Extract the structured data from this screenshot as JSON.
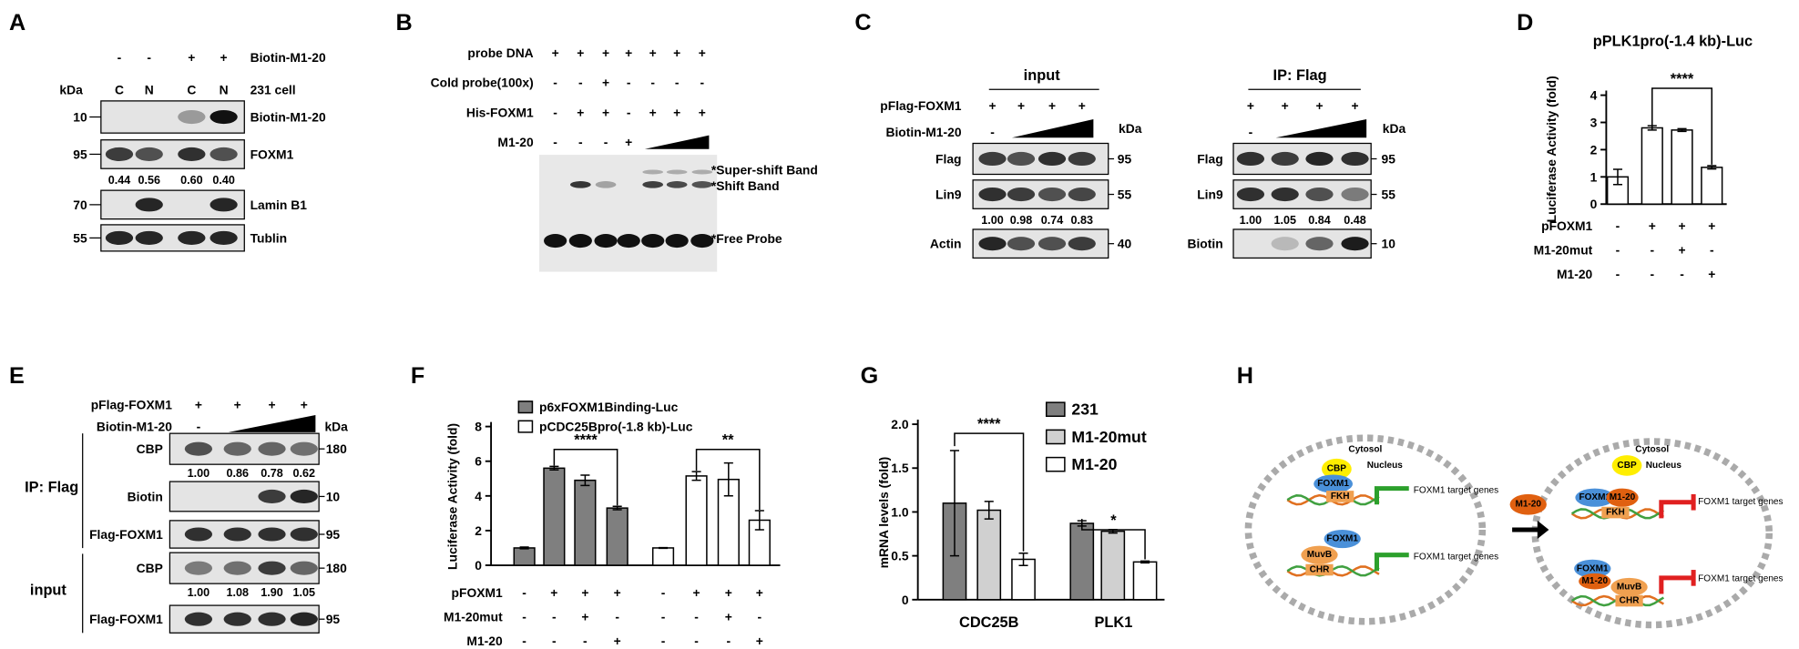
{
  "panels": {
    "A": {
      "letter": "A",
      "lane_signs": [
        "-",
        "-",
        "+",
        "+"
      ],
      "treatment": "Biotin-M1-20",
      "kda": "kDa",
      "fractions": [
        "C",
        "N",
        "C",
        "N"
      ],
      "cell": "231 cell",
      "rows": [
        {
          "marker": "10",
          "label": "Biotin-M1-20"
        },
        {
          "marker": "95",
          "label": "FOXM1",
          "quant": [
            "0.44",
            "0.56",
            "0.60",
            "0.40"
          ]
        },
        {
          "marker": "70",
          "label": "Lamin B1"
        },
        {
          "marker": "55",
          "label": "Tublin"
        }
      ]
    },
    "B": {
      "letter": "B",
      "conditions": [
        {
          "label": "probe DNA",
          "signs": [
            "+",
            "+",
            "+",
            "+",
            "+",
            "+",
            "+"
          ]
        },
        {
          "label": "Cold probe(100x)",
          "signs": [
            "-",
            "-",
            "+",
            "-",
            "-",
            "-",
            "-"
          ]
        },
        {
          "label": "His-FOXM1",
          "signs": [
            "-",
            "+",
            "+",
            "-",
            "+",
            "+",
            "+"
          ]
        },
        {
          "label": "M1-20",
          "signs": [
            "-",
            "-",
            "-",
            "+"
          ]
        }
      ],
      "band_labels": [
        "*Super-shift Band",
        "*Shift Band",
        "*Free Probe"
      ]
    },
    "C": {
      "letter": "C",
      "plasmid": "pFlag-FOXM1",
      "treatment": "Biotin-M1-20",
      "blots": [
        {
          "title": "input",
          "kda": "kDa",
          "plasmid_signs": [
            "+",
            "+",
            "+",
            "+"
          ],
          "treatment_signs": [
            "-"
          ],
          "rows": [
            {
              "label": "Flag",
              "marker": "95"
            },
            {
              "label": "Lin9",
              "marker": "55",
              "quant": [
                "1.00",
                "0.98",
                "0.74",
                "0.83"
              ]
            },
            {
              "label": "Actin",
              "marker": "40"
            }
          ]
        },
        {
          "title": "IP: Flag",
          "kda": "kDa",
          "plasmid_signs": [
            "+",
            "+",
            "+",
            "+"
          ],
          "treatment_signs": [
            "-"
          ],
          "rows": [
            {
              "label": "Flag",
              "marker": "95"
            },
            {
              "label": "Lin9",
              "marker": "55",
              "quant": [
                "1.00",
                "1.05",
                "0.84",
                "0.48"
              ]
            },
            {
              "label": "Biotin",
              "marker": "10"
            }
          ]
        }
      ]
    },
    "E": {
      "letter": "E",
      "plasmid": "pFlag-FOXM1",
      "plasmid_signs": [
        "+",
        "+",
        "+",
        "+"
      ],
      "treatment": "Biotin-M1-20",
      "treatment_signs": [
        "-"
      ],
      "kda": "kDa",
      "groups": [
        {
          "label": "IP: Flag",
          "rows": [
            {
              "label": "CBP",
              "marker": "180",
              "quant": [
                "1.00",
                "0.86",
                "0.78",
                "0.62"
              ]
            },
            {
              "label": "Biotin",
              "marker": "10"
            },
            {
              "label": "Flag-FOXM1",
              "marker": "95"
            }
          ]
        },
        {
          "label": "input",
          "rows": [
            {
              "label": "CBP",
              "marker": "180",
              "quant": [
                "1.00",
                "1.08",
                "1.90",
                "1.05"
              ]
            },
            {
              "label": "Flag-FOXM1",
              "marker": "95"
            }
          ]
        }
      ]
    },
    "H": {
      "letter": "H",
      "left": [
        "Cytosol",
        "Nucleus",
        "CBP",
        "FOXM1",
        "FKH",
        "FOXM1 target genes",
        "FOXM1",
        "MuvB",
        "CHR",
        "FOXM1 target genes"
      ],
      "arrow": [
        "M1-20"
      ],
      "right": [
        "Cytosol",
        "Nucleus",
        "CBP",
        "FOXM1",
        "M1-20",
        "FKH",
        "FOXM1 target genes",
        "FOXM1",
        "M1-20",
        "MuvB",
        "CHR",
        "FOXM1 target genes"
      ]
    }
  },
  "chart_data": [
    {
      "panel": "D",
      "type": "bar",
      "title": "pPLK1pro(-1.4 kb)-Luc",
      "y_label": "Luciferase Activity (fold)",
      "values": [
        1.0,
        2.8,
        2.72,
        1.35
      ],
      "errors": [
        0.28,
        0.08,
        0.05,
        0.06
      ],
      "color": "#ffffff",
      "ylim": [
        0,
        4
      ],
      "yticks": [
        0,
        1,
        2,
        3,
        4
      ],
      "significance": [
        "****"
      ],
      "conditions": [
        {
          "label": "pFOXM1",
          "signs": [
            "-",
            "+",
            "+",
            "+"
          ]
        },
        {
          "label": "M1-20mut",
          "signs": [
            "-",
            "-",
            "+",
            "-"
          ]
        },
        {
          "label": "M1-20",
          "signs": [
            "-",
            "-",
            "-",
            "+"
          ]
        }
      ]
    },
    {
      "panel": "F",
      "type": "bar",
      "y_label": "Luciferase Activity (fold)",
      "series": [
        {
          "name": "p6xFOXM1Binding-Luc",
          "color": "#7f7f7f",
          "values": [
            1.0,
            5.6,
            4.9,
            3.3
          ],
          "errors": [
            0.05,
            0.1,
            0.3,
            0.1
          ]
        },
        {
          "name": "pCDC25Bpro(-1.8 kb)-Luc",
          "color": "#ffffff",
          "values": [
            1.0,
            5.15,
            4.95,
            2.6
          ],
          "errors": [
            0.02,
            0.25,
            0.95,
            0.55
          ]
        }
      ],
      "ylim": [
        0,
        8
      ],
      "yticks": [
        0,
        2,
        4,
        6,
        8
      ],
      "significance": [
        "****",
        "**"
      ],
      "conditions": [
        {
          "label": "pFOXM1",
          "signs": [
            "-",
            "+",
            "+",
            "+",
            "-",
            "+",
            "+",
            "+"
          ]
        },
        {
          "label": "M1-20mut",
          "signs": [
            "-",
            "-",
            "+",
            "-",
            "-",
            "-",
            "+",
            "-"
          ]
        },
        {
          "label": "M1-20",
          "signs": [
            "-",
            "-",
            "-",
            "+",
            "-",
            "-",
            "-",
            "+"
          ]
        }
      ]
    },
    {
      "panel": "G",
      "type": "bar",
      "y_label": "mRNA levels (fold)",
      "categories": [
        "CDC25B",
        "PLK1"
      ],
      "series": [
        {
          "name": "231",
          "color": "#7f7f7f",
          "values": [
            1.1,
            0.87
          ],
          "errors": [
            0.6,
            0.03
          ]
        },
        {
          "name": "M1-20mut",
          "color": "#d0d0d0",
          "values": [
            1.02,
            0.78
          ],
          "errors": [
            0.1,
            0.02
          ]
        },
        {
          "name": "M1-20",
          "color": "#ffffff",
          "values": [
            0.46,
            0.43
          ],
          "errors": [
            0.07,
            0.01
          ]
        }
      ],
      "ylim": [
        0,
        2
      ],
      "yticks": [
        0,
        0.5,
        {
          "value": 1,
          "label": "1.0"
        },
        1.5,
        {
          "value": 2,
          "label": "2.0"
        }
      ],
      "significance": [
        "****",
        "*"
      ]
    }
  ]
}
